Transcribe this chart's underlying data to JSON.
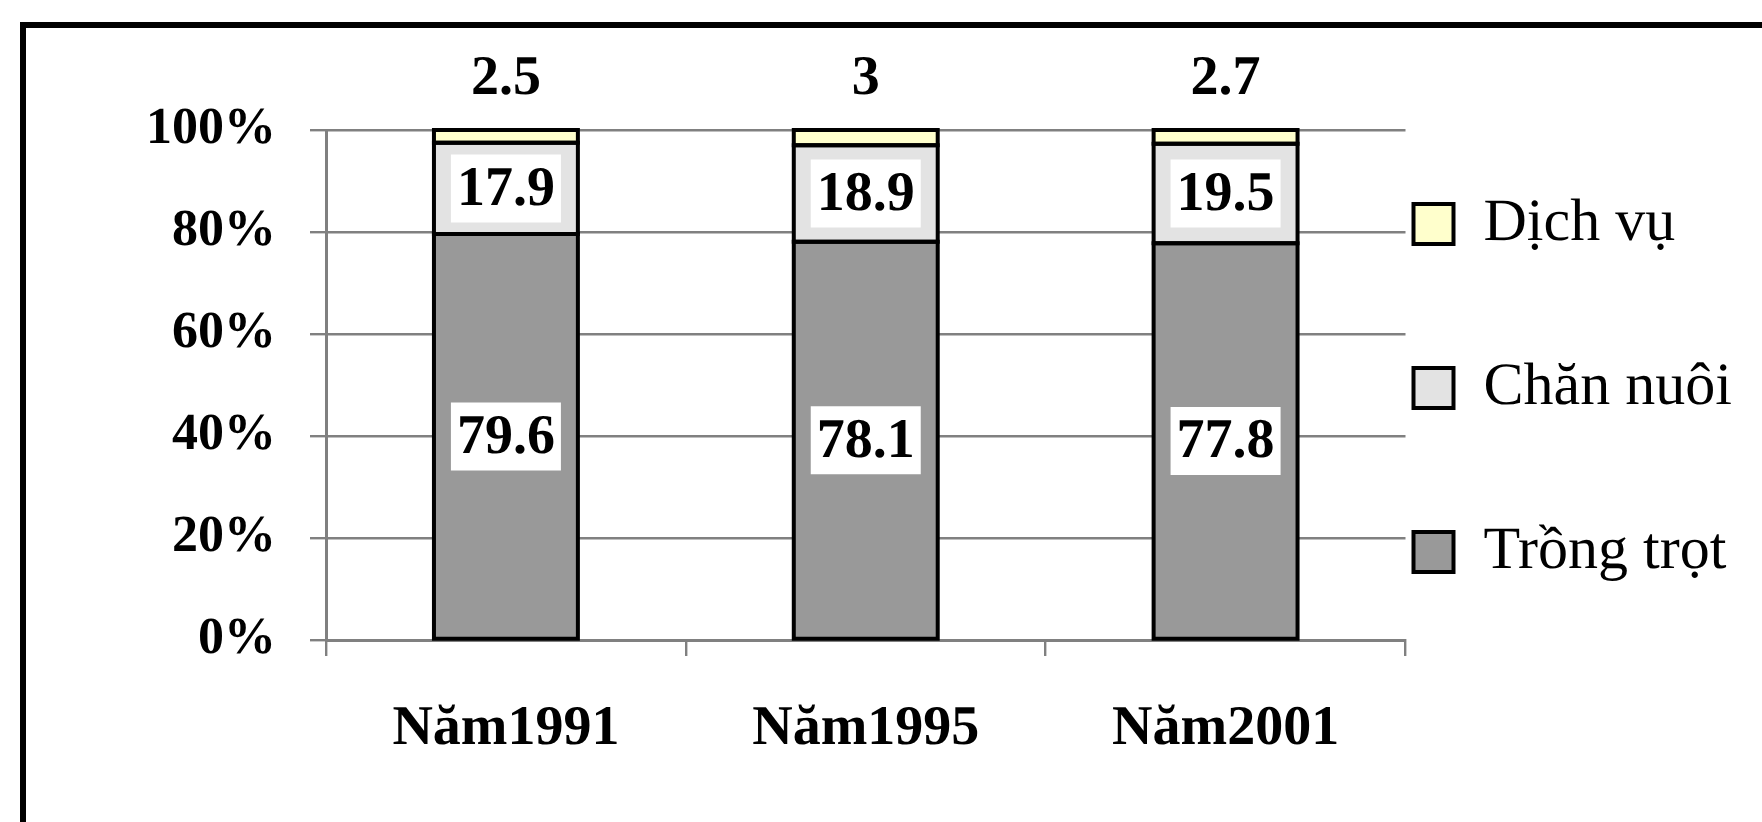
{
  "chart_data": {
    "type": "bar",
    "stacked": true,
    "categories": [
      "Năm1991",
      "Năm1995",
      "Năm2001"
    ],
    "series": [
      {
        "name": "Trồng trọt",
        "color": "#999999",
        "values": [
          79.6,
          78.1,
          77.8
        ]
      },
      {
        "name": "Chăn nuôi",
        "color": "#e3e3e3",
        "values": [
          17.9,
          18.9,
          19.5
        ]
      },
      {
        "name": "Dịch vụ",
        "color": "#ffffcc",
        "values": [
          2.5,
          3,
          2.7
        ]
      }
    ],
    "ylim": [
      0,
      100
    ],
    "yticks": [
      {
        "value": 0,
        "label": "0%"
      },
      {
        "value": 20,
        "label": "20%"
      },
      {
        "value": 40,
        "label": "40%"
      },
      {
        "value": 60,
        "label": "60%"
      },
      {
        "value": 80,
        "label": "80%"
      },
      {
        "value": 100,
        "label": "100%"
      }
    ],
    "grid": "y",
    "legend": "right",
    "data_labels": true
  }
}
